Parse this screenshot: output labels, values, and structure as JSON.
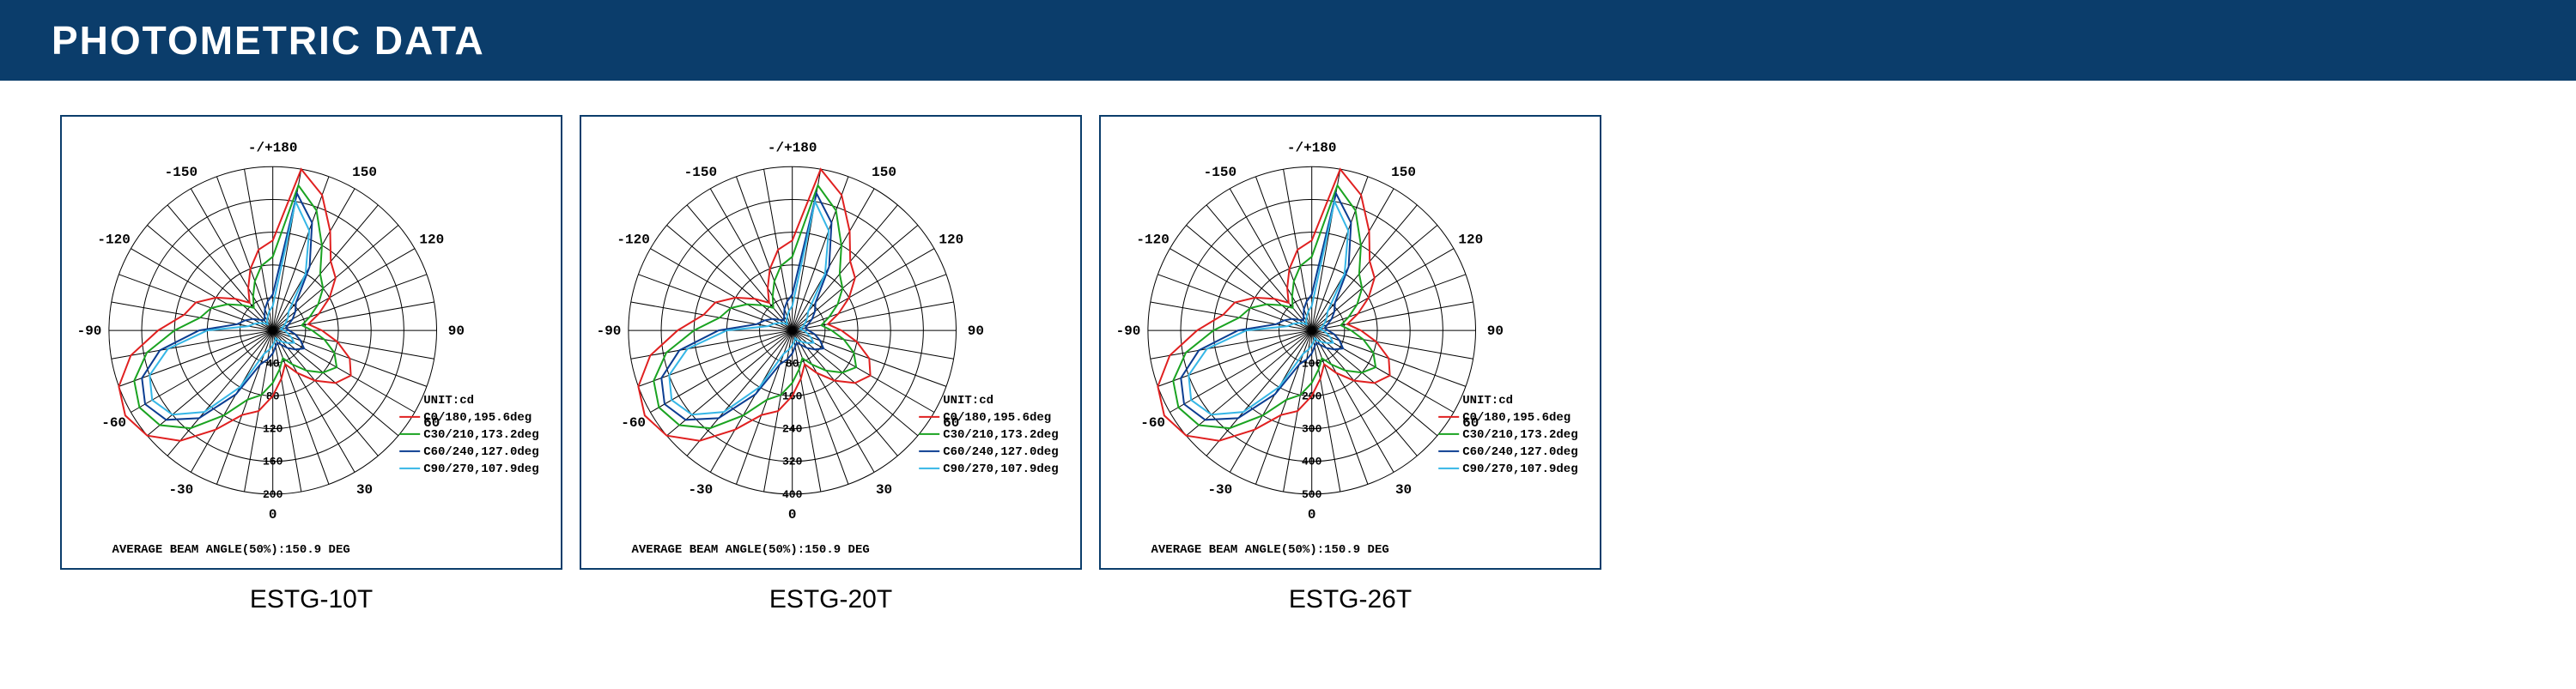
{
  "header": {
    "title": "PHOTOMETRIC DATA",
    "bg_color": "#0b3d6b",
    "text_color": "#ffffff"
  },
  "chart_box_border_color": "#0b3d6b",
  "chart_box_width": 585,
  "chart_box_height": 530,
  "polar": {
    "top_label": "-/+180",
    "angle_labels": [
      {
        "deg": 180,
        "text": ""
      },
      {
        "deg": 150,
        "text": "150"
      },
      {
        "deg": 120,
        "text": "120"
      },
      {
        "deg": 90,
        "text": "90"
      },
      {
        "deg": 60,
        "text": "60"
      },
      {
        "deg": 30,
        "text": "30"
      },
      {
        "deg": 0,
        "text": "0"
      },
      {
        "deg": -30,
        "text": "-30"
      },
      {
        "deg": -60,
        "text": "-60"
      },
      {
        "deg": -90,
        "text": "-90"
      },
      {
        "deg": -120,
        "text": "-120"
      },
      {
        "deg": -150,
        "text": "-150"
      }
    ],
    "n_rings": 5,
    "grid_color": "#000000",
    "grid_width": 1,
    "unit_label": "UNIT:cd",
    "beam_angle_label": "AVERAGE BEAM ANGLE(50%):150.9 DEG",
    "legend": [
      {
        "color": "#e02020",
        "label": "C0/180,195.6deg"
      },
      {
        "color": "#1aa321",
        "label": "C30/210,173.2deg"
      },
      {
        "color": "#0b3d91",
        "label": "C60/240,127.0deg"
      },
      {
        "color": "#35b6e6",
        "label": "C90/270,107.9deg"
      }
    ],
    "curves": [
      {
        "color": "#e02020",
        "r": [
          0.55,
          0.5,
          0.4,
          0.3,
          0.22,
          0.3,
          0.4,
          0.5,
          0.55,
          0.7,
          0.88,
          1.0,
          1.04,
          1.0,
          0.88,
          0.7,
          0.55,
          0.5,
          0.4,
          0.3,
          0.22,
          0.3,
          0.4,
          0.5,
          0.55,
          0.5,
          0.4,
          0.3,
          0.22,
          0.3,
          0.4,
          0.5,
          0.55,
          0.7,
          0.88,
          1.0
        ]
      },
      {
        "color": "#1aa321",
        "r": [
          0.45,
          0.4,
          0.32,
          0.24,
          0.18,
          0.24,
          0.32,
          0.4,
          0.45,
          0.6,
          0.78,
          0.9,
          0.94,
          0.9,
          0.78,
          0.6,
          0.45,
          0.4,
          0.32,
          0.24,
          0.18,
          0.24,
          0.32,
          0.4,
          0.45,
          0.4,
          0.32,
          0.24,
          0.18,
          0.24,
          0.32,
          0.4,
          0.45,
          0.6,
          0.78,
          0.9
        ]
      },
      {
        "color": "#0b3d91",
        "r": [
          0.22,
          0.18,
          0.14,
          0.1,
          0.08,
          0.1,
          0.14,
          0.18,
          0.22,
          0.45,
          0.7,
          0.85,
          0.9,
          0.85,
          0.7,
          0.45,
          0.22,
          0.18,
          0.14,
          0.1,
          0.08,
          0.1,
          0.14,
          0.18,
          0.22,
          0.18,
          0.14,
          0.1,
          0.08,
          0.1,
          0.14,
          0.18,
          0.22,
          0.45,
          0.7,
          0.85
        ]
      },
      {
        "color": "#35b6e6",
        "r": [
          0.15,
          0.12,
          0.09,
          0.07,
          0.05,
          0.07,
          0.09,
          0.12,
          0.15,
          0.4,
          0.65,
          0.8,
          0.85,
          0.8,
          0.65,
          0.4,
          0.15,
          0.12,
          0.09,
          0.07,
          0.05,
          0.07,
          0.09,
          0.12,
          0.15,
          0.12,
          0.09,
          0.07,
          0.05,
          0.07,
          0.09,
          0.12,
          0.15,
          0.4,
          0.65,
          0.8
        ]
      }
    ]
  },
  "charts": [
    {
      "caption": "ESTG-10T",
      "radial_ticks": [
        "40",
        "80",
        "120",
        "160",
        "200"
      ]
    },
    {
      "caption": "ESTG-20T",
      "radial_ticks": [
        "80",
        "160",
        "240",
        "320",
        "400"
      ]
    },
    {
      "caption": "ESTG-26T",
      "radial_ticks": [
        "100",
        "200",
        "300",
        "400",
        "500"
      ]
    }
  ],
  "font": {
    "mono": "Courier New, monospace",
    "label_size": 16,
    "legend_size": 14,
    "tick_size": 13
  }
}
